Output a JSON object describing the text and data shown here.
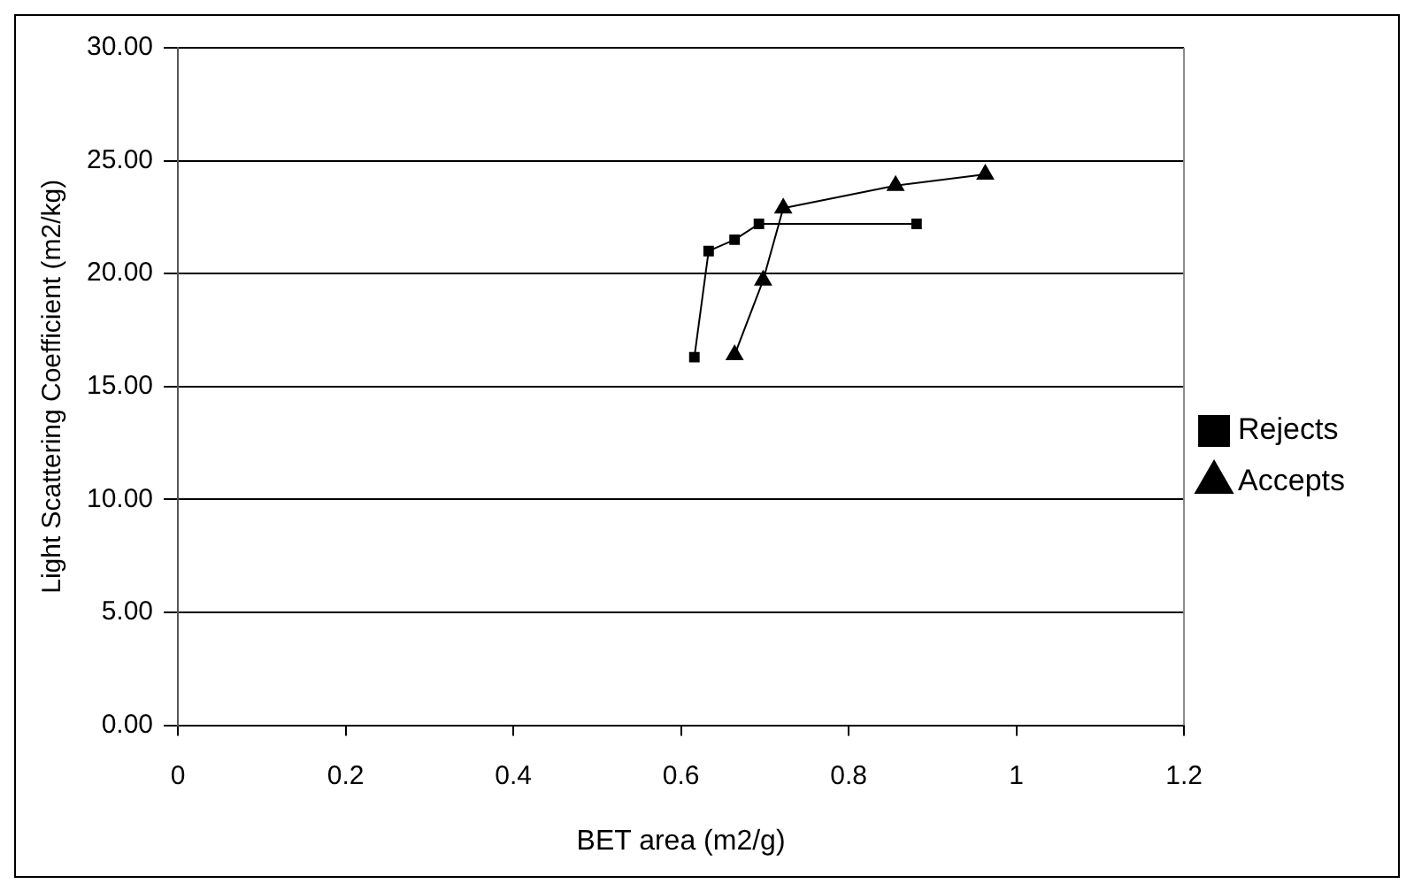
{
  "chart_data": {
    "type": "line",
    "xlabel": "BET area (m2/g)",
    "ylabel": "Light Scattering Coefficient (m2/kg)",
    "xlim": [
      0,
      1.2
    ],
    "xticks": [
      0,
      0.2,
      0.4,
      0.6,
      0.8,
      1,
      1.2
    ],
    "ylim": [
      0,
      30
    ],
    "yticks": [
      {
        "value": 0,
        "label": "0.00"
      },
      {
        "value": 5,
        "label": "5.00"
      },
      {
        "value": 10,
        "label": "10.00"
      },
      {
        "value": 15,
        "label": "15.00"
      },
      {
        "value": 20,
        "label": "20.00"
      },
      {
        "value": 25,
        "label": "25.00"
      },
      {
        "value": 30,
        "label": "30.00"
      }
    ],
    "grid": "y",
    "legend": "right",
    "series": [
      {
        "name": "Rejects",
        "color": "#000000",
        "marker": "square",
        "x": [
          0.616,
          0.633,
          0.664,
          0.693,
          0.881
        ],
        "values": [
          16.3,
          21.0,
          21.5,
          22.2,
          22.2
        ]
      },
      {
        "name": "Accepts",
        "color": "#000000",
        "marker": "triangle",
        "x": [
          0.664,
          0.698,
          0.722,
          0.856,
          0.963
        ],
        "values": [
          16.4,
          19.7,
          22.9,
          23.9,
          24.4
        ]
      }
    ]
  }
}
